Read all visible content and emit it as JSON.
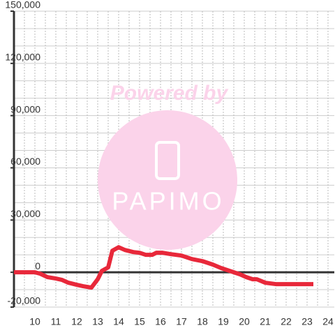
{
  "chart_data": {
    "type": "line",
    "watermark": {
      "top": "Powered by",
      "brand": "PAPIMO"
    },
    "x": [
      9,
      10,
      10.25,
      10.6,
      11,
      11.3,
      11.6,
      12,
      12.3,
      12.7,
      13,
      13.2,
      13.5,
      13.7,
      14,
      14.3,
      14.7,
      15,
      15.3,
      15.6,
      15.8,
      16.1,
      16.5,
      17,
      17.5,
      18,
      18.5,
      18.9,
      19.3,
      19.8,
      20.1,
      20.4,
      20.6,
      21,
      21.5,
      23.3
    ],
    "series": [
      {
        "color": "#e8283a",
        "values": [
          0,
          0,
          -800,
          -2800,
          -3600,
          -4400,
          -6000,
          -7200,
          -8000,
          -8800,
          -4000,
          800,
          2800,
          12400,
          14400,
          12800,
          11600,
          11200,
          10000,
          10000,
          11200,
          11200,
          10400,
          9600,
          7600,
          6400,
          4400,
          2400,
          800,
          -1200,
          -2800,
          -4000,
          -4000,
          -6000,
          -6800,
          -6800
        ]
      }
    ],
    "xlim": [
      9,
      24.3
    ],
    "xticks": [
      10,
      11,
      12,
      13,
      14,
      15,
      16,
      17,
      18,
      19,
      20,
      21,
      22,
      23,
      24
    ],
    "xminorticks": [
      9.5,
      10,
      10.5,
      11,
      11.5,
      12,
      12.5,
      13,
      13.5,
      14,
      14.5,
      15,
      15.5,
      16,
      16.5,
      17,
      17.5,
      18,
      18.5,
      19,
      19.5,
      20,
      20.5,
      21,
      21.5,
      22,
      22.5,
      23,
      23.5,
      24
    ],
    "ylim": [
      -20000,
      150000
    ],
    "yticks": [
      {
        "value": -20000,
        "label": "-20,000"
      },
      0,
      {
        "value": 30000,
        "label": "30,000"
      },
      {
        "value": 60000,
        "label": "60,000"
      },
      {
        "value": 90000,
        "label": "90,000"
      },
      {
        "value": 120000,
        "label": "120,000"
      },
      {
        "value": 150000,
        "label": "150,000"
      }
    ],
    "yminorticks": [
      -20000,
      -10000,
      0,
      10000,
      20000,
      30000,
      40000,
      50000,
      60000,
      70000,
      80000,
      90000,
      100000,
      110000,
      120000,
      130000,
      140000,
      150000
    ],
    "grid": true
  }
}
